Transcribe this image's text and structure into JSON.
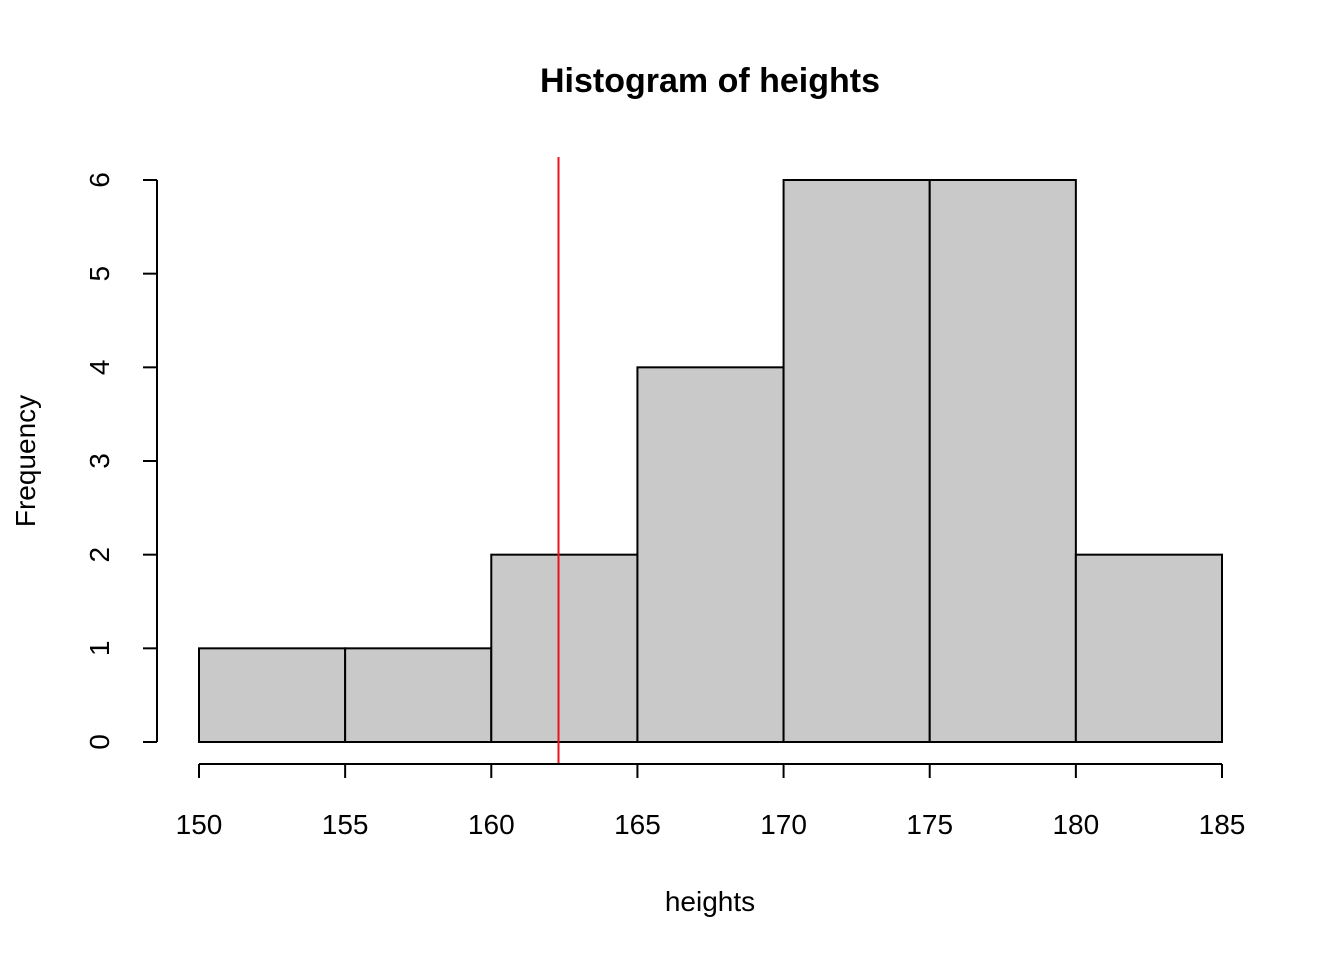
{
  "chart_data": {
    "type": "bar",
    "title": "Histogram of heights",
    "xlabel": "heights",
    "ylabel": "Frequency",
    "bins": [
      {
        "from": 150,
        "to": 155,
        "count": 1
      },
      {
        "from": 155,
        "to": 160,
        "count": 1
      },
      {
        "from": 160,
        "to": 165,
        "count": 2
      },
      {
        "from": 165,
        "to": 170,
        "count": 4
      },
      {
        "from": 170,
        "to": 175,
        "count": 6
      },
      {
        "from": 175,
        "to": 180,
        "count": 6
      },
      {
        "from": 180,
        "to": 185,
        "count": 2
      }
    ],
    "x_ticks": [
      150,
      155,
      160,
      165,
      170,
      175,
      180,
      185
    ],
    "y_ticks": [
      0,
      1,
      2,
      3,
      4,
      5,
      6
    ],
    "xlim": [
      150,
      185
    ],
    "ylim": [
      0,
      6
    ],
    "grid": false,
    "legend": "none",
    "vertical_line": {
      "x": 162.3,
      "color": "#e8141c"
    },
    "bar_fill": "#c9c9c9",
    "bar_stroke": "#000000"
  }
}
